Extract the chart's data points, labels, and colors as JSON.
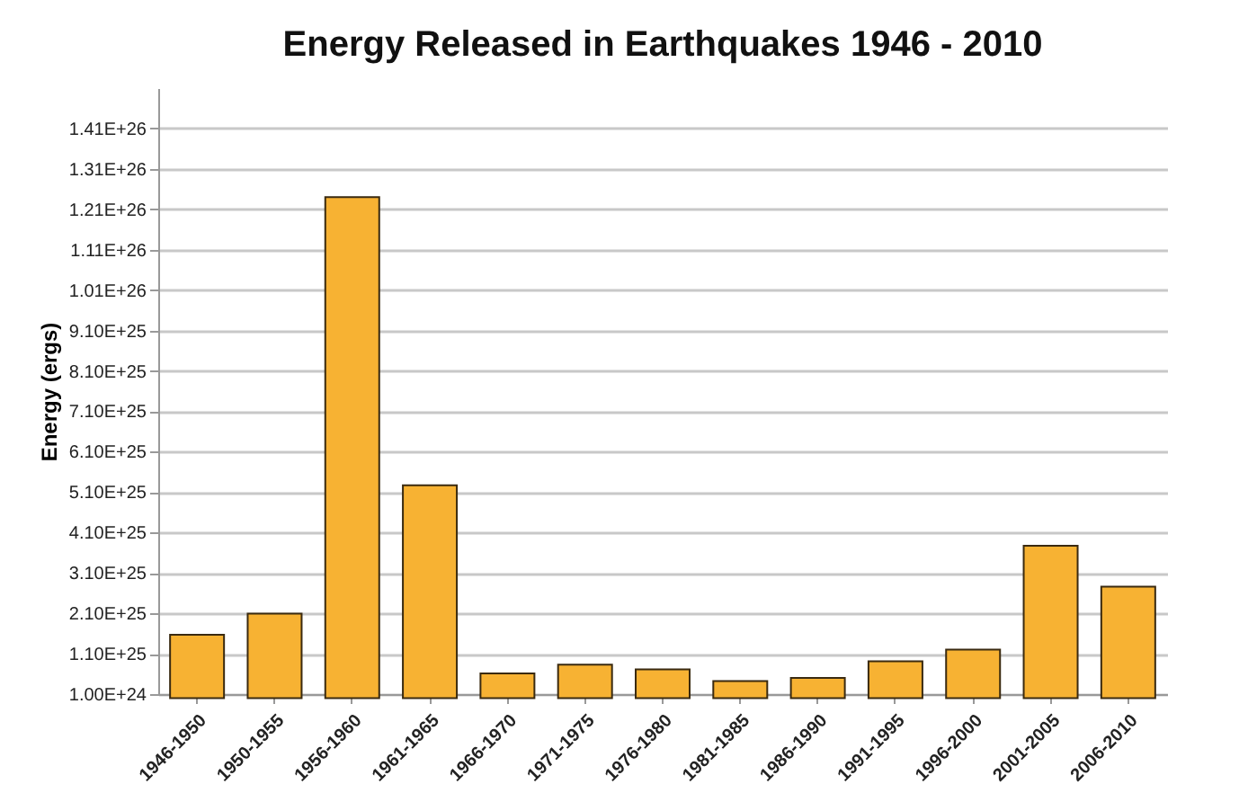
{
  "chart_data": {
    "type": "bar",
    "title": "Energy Released in Earthquakes 1946 - 2010",
    "ylabel": "Energy (ergs)",
    "categories": [
      "1946-1950",
      "1950-1955",
      "1956-1960",
      "1961-1965",
      "1966-1970",
      "1971-1975",
      "1976-1980",
      "1981-1985",
      "1986-1990",
      "1991-1995",
      "1996-2000",
      "2001-2005",
      "2006-2010"
    ],
    "values": [
      1.57e+25,
      2.09e+25,
      1.24e+26,
      5.27e+25,
      6.1e+24,
      8.3e+24,
      7.1e+24,
      4.2e+24,
      5e+24,
      9.1e+24,
      1.2e+25,
      3.77e+25,
      2.76e+25
    ],
    "color": "#f7b233",
    "ylim": [
      1e+24,
      1.51e+26
    ],
    "yticks": [
      {
        "value": 1e+24,
        "label": "1.00E+24"
      },
      {
        "value": 1.1e+25,
        "label": "1.10E+25"
      },
      {
        "value": 2.1e+25,
        "label": "2.10E+25"
      },
      {
        "value": 3.1e+25,
        "label": "3.10E+25"
      },
      {
        "value": 4.1e+25,
        "label": "4.10E+25"
      },
      {
        "value": 5.1e+25,
        "label": "5.10E+25"
      },
      {
        "value": 6.1e+25,
        "label": "6.10E+25"
      },
      {
        "value": 7.1e+25,
        "label": "7.10E+25"
      },
      {
        "value": 8.1e+25,
        "label": "8.10E+25"
      },
      {
        "value": 9.1e+25,
        "label": "9.10E+25"
      },
      {
        "value": 1.01e+26,
        "label": "1.01E+26"
      },
      {
        "value": 1.11e+26,
        "label": "1.11E+26"
      },
      {
        "value": 1.21e+26,
        "label": "1.21E+26"
      },
      {
        "value": 1.31e+26,
        "label": "1.31E+26"
      },
      {
        "value": 1.41e+26,
        "label": "1.41E+26"
      }
    ],
    "grid": "y"
  }
}
